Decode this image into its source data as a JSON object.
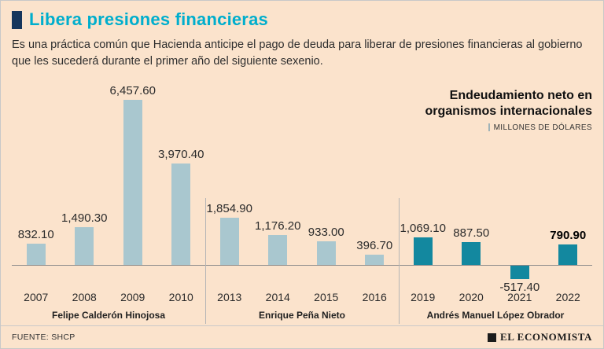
{
  "header": {
    "title": "Libera presiones financieras",
    "accent_color": "#00aecd",
    "square_color": "#16365c"
  },
  "intro": "Es una práctica común que Hacienda anticipe el pago de deuda para liberar de presiones financieras al gobierno que les sucederá durante el primer año del siguiente sexenio.",
  "chart_heading": {
    "title_line1": "Endeudamiento neto en",
    "title_line2": "organismos internacionales",
    "unit": "MILLONES DE DÓLARES"
  },
  "chart_data": {
    "type": "bar",
    "title": "Endeudamiento neto en organismos internacionales",
    "ylabel": "Millones de dólares",
    "ylim": [
      -600,
      6600
    ],
    "grid": false,
    "colors": {
      "past_terms": "#a9c7cf",
      "current_term": "#13889f"
    },
    "groups": [
      {
        "president": "Felipe Calderón Hinojosa",
        "years": [
          "2007",
          "2008",
          "2009",
          "2010"
        ],
        "values": [
          832.1,
          1490.3,
          6457.6,
          3970.4
        ],
        "labels": [
          "832.10",
          "1,490.30",
          "6,457.60",
          "3,970.40"
        ],
        "bar_color": "#a9c7cf",
        "highlight_last": false
      },
      {
        "president": "Enrique Peña Nieto",
        "years": [
          "2013",
          "2014",
          "2015",
          "2016"
        ],
        "values": [
          1854.9,
          1176.2,
          933.0,
          396.7
        ],
        "labels": [
          "1,854.90",
          "1,176.20",
          "933.00",
          "396.70"
        ],
        "bar_color": "#a9c7cf",
        "highlight_last": false
      },
      {
        "president": "Andrés Manuel López Obrador",
        "years": [
          "2019",
          "2020",
          "2021",
          "2022"
        ],
        "values": [
          1069.1,
          887.5,
          -517.4,
          790.9
        ],
        "labels": [
          "1,069.10",
          "887.50",
          "-517.40",
          "790.90"
        ],
        "bar_color": "#13889f",
        "highlight_last": true
      }
    ]
  },
  "footer": {
    "source": "FUENTE: SHCP",
    "brand": "EL ECONOMISTA"
  }
}
